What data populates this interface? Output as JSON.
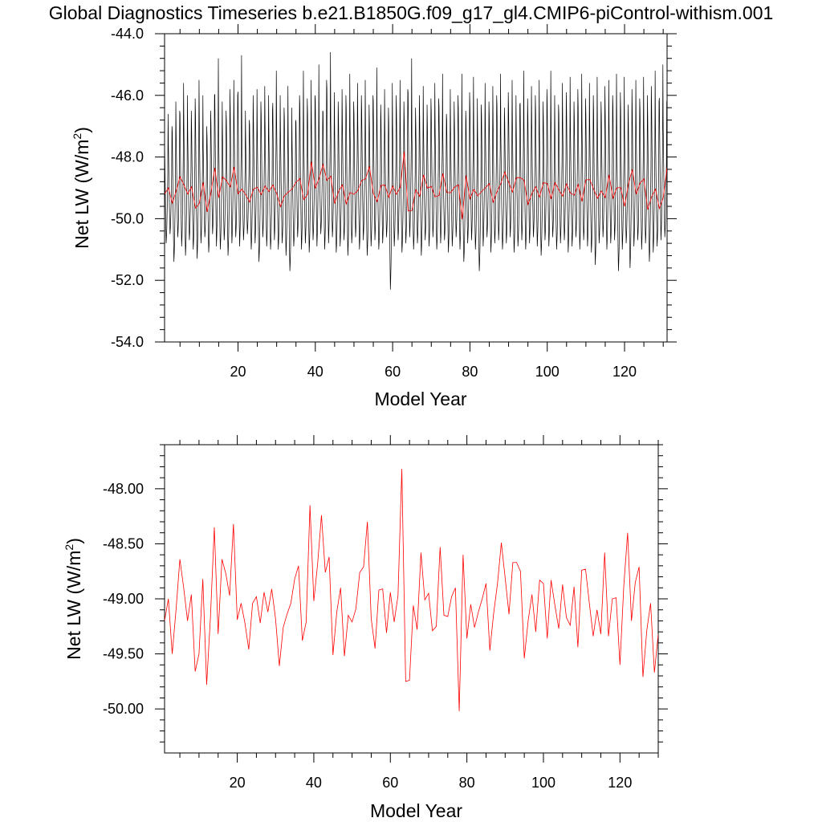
{
  "figure": {
    "title": "Global Diagnostics Timeseries b.e21.B1850G.f09_g17_gl4.CMIP6-piControl-withism.001"
  },
  "colors": {
    "monthly": "#000000",
    "annual": "#ff0000"
  },
  "chart_data": [
    {
      "type": "line",
      "name": "top-panel",
      "xlabel": "Model Year",
      "ylabel_main": "Net LW (W/m",
      "ylabel_sup": "2",
      "ylabel_end": ")",
      "xlim": [
        1,
        131
      ],
      "ylim": [
        -54.0,
        -44.0
      ],
      "xticks": [
        20,
        40,
        60,
        80,
        100,
        120
      ],
      "xtick_labels": [
        "20",
        "40",
        "60",
        "80",
        "100",
        "120"
      ],
      "yticks": [
        -54.0,
        -52.0,
        -50.0,
        -48.0,
        -46.0,
        -44.0
      ],
      "ytick_labels": [
        "-54.0",
        "-52.0",
        "-50.0",
        "-48.0",
        "-46.0",
        "-44.0"
      ],
      "series": [
        {
          "role": "monthly",
          "note_x": "year (fractional, monthly)",
          "monthly_pattern": [
            -47.2,
            -48.0,
            -48.8,
            -49.5,
            -50.1,
            -50.6,
            -50.4,
            -50.1,
            -49.6,
            -49.0,
            -48.3,
            -46.4
          ],
          "annual_peak": [
            -46.6,
            -47.0,
            -46.2,
            -46.5,
            -45.6,
            -46.0,
            -46.5,
            -46.1,
            -45.5,
            -46.0,
            -47.0,
            -46.5,
            -46.0,
            -44.8,
            -46.2,
            -46.5,
            -45.8,
            -45.5,
            -46.0,
            -44.7,
            -46.5,
            -46.8,
            -46.0,
            -45.8,
            -46.2,
            -45.7,
            -46.0,
            -46.5,
            -45.2,
            -46.0,
            -46.4,
            -45.7,
            -46.4,
            -46.8,
            -46.0,
            -45.2,
            -46.1,
            -45.5,
            -46.0,
            -45.0,
            -46.5,
            -45.5,
            -44.6,
            -45.9,
            -46.2,
            -45.8,
            -46.0,
            -45.3,
            -46.2,
            -45.6,
            -46.0,
            -45.5,
            -46.3,
            -46.0,
            -45.1,
            -46.3,
            -45.8,
            -46.4,
            -45.6,
            -46.0,
            -45.5,
            -46.2,
            -45.8,
            -44.8,
            -46.4,
            -46.0,
            -45.7,
            -46.3,
            -46.1,
            -45.6,
            -46.1,
            -45.3,
            -46.6,
            -45.8,
            -46.2,
            -46.0,
            -45.3,
            -46.5,
            -45.9,
            -45.4,
            -46.1,
            -46.3,
            -45.6,
            -46.2,
            -45.7,
            -46.0,
            -45.3,
            -46.4,
            -45.9,
            -45.5,
            -46.0,
            -46.3,
            -45.2,
            -46.1,
            -45.7,
            -46.0,
            -45.5,
            -46.2,
            -45.8,
            -45.2,
            -46.0,
            -46.3,
            -45.6,
            -45.9,
            -45.4,
            -46.2,
            -45.8,
            -45.3,
            -46.1,
            -45.6,
            -46.0,
            -45.4,
            -46.2,
            -45.7,
            -45.5,
            -46.0,
            -45.3,
            -45.9,
            -45.4,
            -46.3,
            -45.8,
            -45.5,
            -46.1,
            -45.4,
            -46.0,
            -45.7,
            -45.2,
            -46.2,
            -45.0,
            -46.2,
            -46.8
          ],
          "annual_trough": [
            -50.8,
            -50.5,
            -51.4,
            -50.6,
            -50.9,
            -51.2,
            -50.7,
            -51.0,
            -51.3,
            -50.8,
            -50.6,
            -51.1,
            -50.5,
            -50.9,
            -51.0,
            -50.7,
            -51.2,
            -50.8,
            -50.6,
            -50.9,
            -50.7,
            -50.5,
            -51.0,
            -50.8,
            -51.4,
            -50.6,
            -50.9,
            -51.0,
            -50.7,
            -51.0,
            -50.8,
            -51.2,
            -51.7,
            -50.9,
            -50.6,
            -51.0,
            -50.8,
            -51.1,
            -50.7,
            -50.9,
            -50.5,
            -51.0,
            -50.8,
            -50.6,
            -51.1,
            -50.9,
            -50.7,
            -51.2,
            -50.8,
            -50.6,
            -51.0,
            -50.7,
            -51.2,
            -50.9,
            -50.7,
            -51.0,
            -50.8,
            -50.6,
            -52.3,
            -50.9,
            -50.7,
            -51.1,
            -50.8,
            -50.6,
            -51.0,
            -50.8,
            -51.2,
            -50.7,
            -50.9,
            -50.6,
            -51.0,
            -50.8,
            -50.7,
            -51.1,
            -50.9,
            -50.6,
            -51.0,
            -51.4,
            -50.8,
            -50.7,
            -51.0,
            -51.7,
            -50.9,
            -50.6,
            -51.1,
            -50.8,
            -50.7,
            -51.0,
            -50.8,
            -50.6,
            -51.1,
            -50.9,
            -50.7,
            -51.0,
            -50.8,
            -50.6,
            -50.9,
            -51.2,
            -50.7,
            -50.9,
            -50.6,
            -51.0,
            -50.8,
            -50.7,
            -51.1,
            -50.9,
            -50.6,
            -51.0,
            -50.7,
            -50.9,
            -51.1,
            -51.5,
            -50.8,
            -50.6,
            -51.0,
            -50.8,
            -50.7,
            -51.7,
            -51.0,
            -50.8,
            -51.6,
            -50.9,
            -50.7,
            -51.0,
            -50.8,
            -51.4,
            -51.1,
            -50.9,
            -50.7,
            -50.6,
            -50.8
          ]
        },
        {
          "role": "annual",
          "x_start": 1,
          "values": [
            -49.2,
            -49.0,
            -49.5,
            -49.1,
            -48.64,
            -48.9,
            -49.2,
            -48.96,
            -49.66,
            -49.5,
            -48.82,
            -49.78,
            -49.16,
            -48.35,
            -49.32,
            -48.64,
            -48.77,
            -48.97,
            -48.32,
            -49.19,
            -49.04,
            -49.22,
            -49.46,
            -49.04,
            -48.98,
            -49.22,
            -48.94,
            -49.12,
            -48.91,
            -49.18,
            -49.61,
            -49.26,
            -49.14,
            -49.04,
            -48.82,
            -48.7,
            -49.38,
            -49.21,
            -48.15,
            -49.02,
            -48.68,
            -48.24,
            -48.76,
            -48.62,
            -49.51,
            -49.12,
            -48.9,
            -49.52,
            -49.15,
            -49.21,
            -49.09,
            -48.76,
            -48.71,
            -48.3,
            -49.18,
            -49.45,
            -48.92,
            -48.91,
            -49.31,
            -48.94,
            -49.21,
            -48.97,
            -47.82,
            -49.75,
            -49.74,
            -49.06,
            -49.28,
            -48.58,
            -49.01,
            -48.95,
            -49.29,
            -49.25,
            -48.53,
            -49.15,
            -49.16,
            -48.98,
            -48.9,
            -50.02,
            -48.6,
            -49.36,
            -49.05,
            -49.26,
            -49.12,
            -49.0,
            -48.86,
            -49.47,
            -49.13,
            -48.86,
            -48.49,
            -48.81,
            -49.14,
            -48.67,
            -48.67,
            -48.75,
            -49.54,
            -49.2,
            -48.96,
            -49.3,
            -48.83,
            -48.86,
            -49.36,
            -48.83,
            -49.06,
            -49.27,
            -48.87,
            -49.17,
            -49.24,
            -48.89,
            -49.44,
            -48.74,
            -48.73,
            -49.04,
            -49.34,
            -49.1,
            -49.32,
            -48.58,
            -49.34,
            -49.0,
            -48.99,
            -49.6,
            -48.88,
            -48.4,
            -49.2,
            -48.85,
            -48.71,
            -49.71,
            -49.29,
            -49.04,
            -49.67,
            -49.32,
            -48.35
          ]
        }
      ]
    },
    {
      "type": "line",
      "name": "bottom-panel",
      "xlabel": "Model Year",
      "ylabel_main": "Net LW (W/m",
      "ylabel_sup": "2",
      "ylabel_end": ")",
      "xlim": [
        1,
        130
      ],
      "ylim": [
        -50.4,
        -47.6
      ],
      "xticks": [
        20,
        40,
        60,
        80,
        100,
        120
      ],
      "xtick_labels": [
        "20",
        "40",
        "60",
        "80",
        "100",
        "120"
      ],
      "yticks": [
        -50.0,
        -49.5,
        -49.0,
        -48.5,
        -48.0
      ],
      "ytick_labels": [
        "-50.00",
        "-49.50",
        "-49.00",
        "-48.50",
        "-48.00"
      ],
      "series": [
        {
          "role": "annual",
          "x_start": 1,
          "values": [
            -49.2,
            -49.0,
            -49.5,
            -49.1,
            -48.64,
            -48.9,
            -49.2,
            -48.96,
            -49.66,
            -49.5,
            -48.82,
            -49.78,
            -49.16,
            -48.35,
            -49.32,
            -48.64,
            -48.77,
            -48.97,
            -48.32,
            -49.19,
            -49.04,
            -49.22,
            -49.46,
            -49.04,
            -48.98,
            -49.22,
            -48.94,
            -49.12,
            -48.91,
            -49.18,
            -49.61,
            -49.26,
            -49.14,
            -49.04,
            -48.82,
            -48.7,
            -49.38,
            -49.21,
            -48.15,
            -49.02,
            -48.68,
            -48.24,
            -48.76,
            -48.62,
            -49.51,
            -49.12,
            -48.9,
            -49.52,
            -49.15,
            -49.21,
            -49.09,
            -48.76,
            -48.71,
            -48.3,
            -49.18,
            -49.45,
            -48.92,
            -48.91,
            -49.31,
            -48.94,
            -49.21,
            -48.97,
            -47.82,
            -49.75,
            -49.74,
            -49.06,
            -49.28,
            -48.58,
            -49.01,
            -48.95,
            -49.29,
            -49.25,
            -48.53,
            -49.15,
            -49.16,
            -48.98,
            -48.9,
            -50.02,
            -48.6,
            -49.36,
            -49.05,
            -49.26,
            -49.12,
            -49.0,
            -48.86,
            -49.47,
            -49.13,
            -48.86,
            -48.49,
            -48.81,
            -49.14,
            -48.67,
            -48.67,
            -48.75,
            -49.54,
            -49.2,
            -48.96,
            -49.3,
            -48.83,
            -48.86,
            -49.36,
            -48.83,
            -49.06,
            -49.27,
            -48.87,
            -49.17,
            -49.24,
            -48.89,
            -49.44,
            -48.74,
            -48.73,
            -49.04,
            -49.34,
            -49.1,
            -49.32,
            -48.58,
            -49.34,
            -49.0,
            -48.99,
            -49.6,
            -48.88,
            -48.4,
            -49.2,
            -48.85,
            -48.71,
            -49.71,
            -49.29,
            -49.04,
            -49.67,
            -49.32
          ]
        }
      ]
    }
  ]
}
